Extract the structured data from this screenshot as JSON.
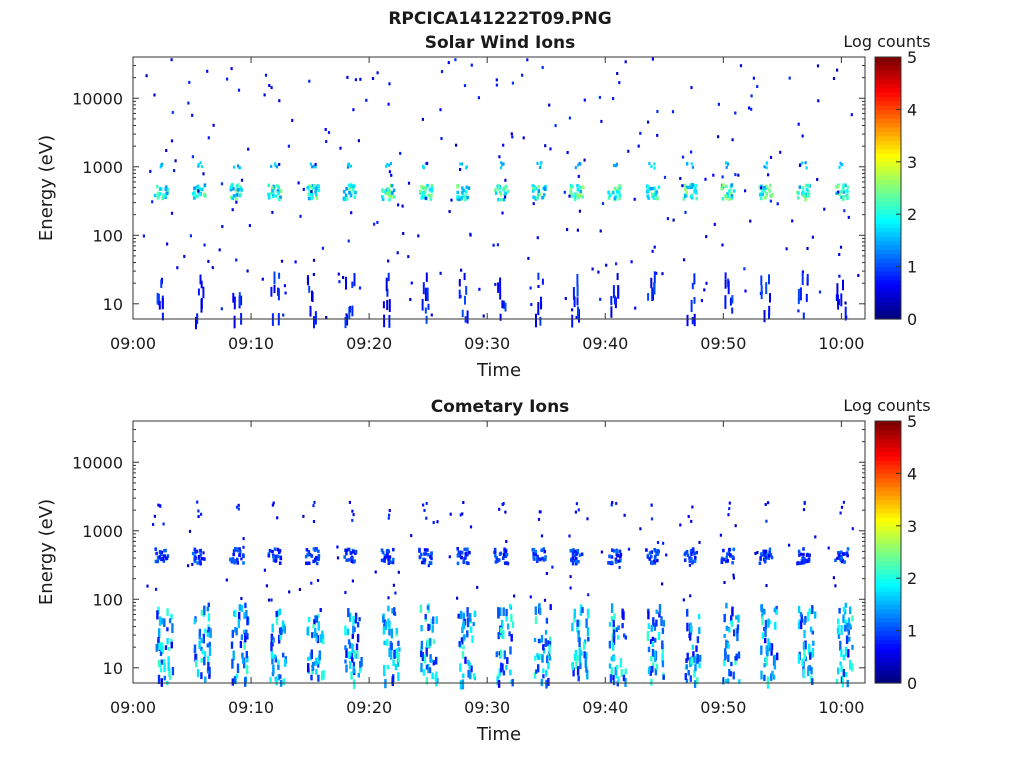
{
  "figure": {
    "title": "RPCICA141222T09.PNG",
    "colorbar_label": "Log counts",
    "colorbar_ticks": [
      "0",
      "1",
      "2",
      "3",
      "4",
      "5"
    ],
    "colormap": "jet",
    "background": "#ffffff"
  },
  "chart_data": [
    {
      "type": "heatmap",
      "title": "Solar Wind Ions",
      "xlabel": "Time",
      "ylabel": "Energy (eV)",
      "x_ticks": [
        "09:00",
        "09:10",
        "09:20",
        "09:30",
        "09:40",
        "09:50",
        "10:00"
      ],
      "xlim": [
        "09:00",
        "10:02"
      ],
      "y_ticks": [
        "10",
        "100",
        "1000",
        "10000"
      ],
      "y_scale": "log",
      "ylim": [
        6,
        40000
      ],
      "clim": [
        0,
        5
      ],
      "sweep_period_minutes": 3.2,
      "dominant_band_energy_eV": 450,
      "dominant_band_log_counts": 2.2,
      "secondary_band_energy_eV": 1100,
      "grid": false
    },
    {
      "type": "heatmap",
      "title": "Cometary Ions",
      "xlabel": "Time",
      "ylabel": "Energy (eV)",
      "x_ticks": [
        "09:00",
        "09:10",
        "09:20",
        "09:30",
        "09:40",
        "09:50",
        "10:00"
      ],
      "xlim": [
        "09:00",
        "10:02"
      ],
      "y_ticks": [
        "10",
        "100",
        "1000",
        "10000"
      ],
      "y_scale": "log",
      "ylim": [
        6,
        40000
      ],
      "clim": [
        0,
        5
      ],
      "sweep_period_minutes": 3.2,
      "dominant_band_energy_eV": 450,
      "dominant_band_log_counts": 1.0,
      "low_energy_range_eV": [
        6,
        90
      ],
      "low_energy_log_counts": 2.0,
      "grid": false
    }
  ]
}
